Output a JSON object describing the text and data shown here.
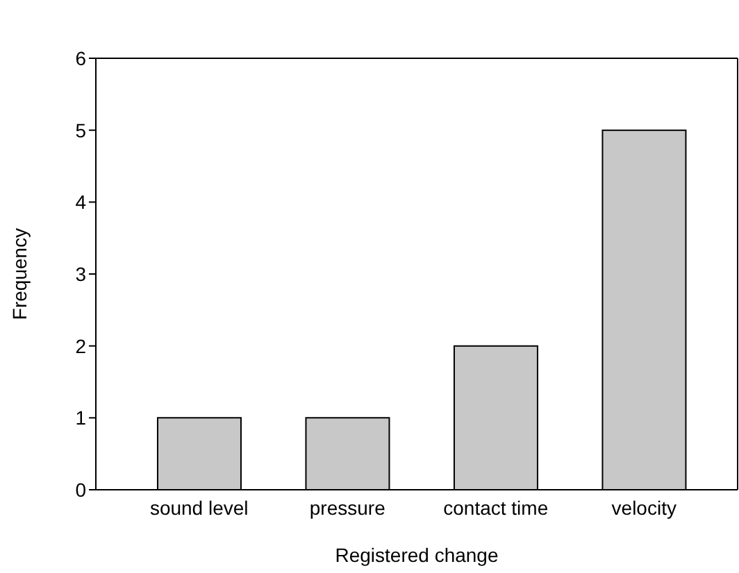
{
  "chart_data": {
    "type": "bar",
    "xlabel": "Registered change",
    "ylabel": "Frequency",
    "categories": [
      "sound level",
      "pressure",
      "contact time",
      "velocity"
    ],
    "values": [
      1,
      1,
      2,
      5
    ],
    "color": "#c8c8c8",
    "ylim": [
      0,
      6
    ],
    "yticks": [
      0,
      1,
      2,
      3,
      4,
      5,
      6
    ],
    "grid": false,
    "legend": false
  }
}
